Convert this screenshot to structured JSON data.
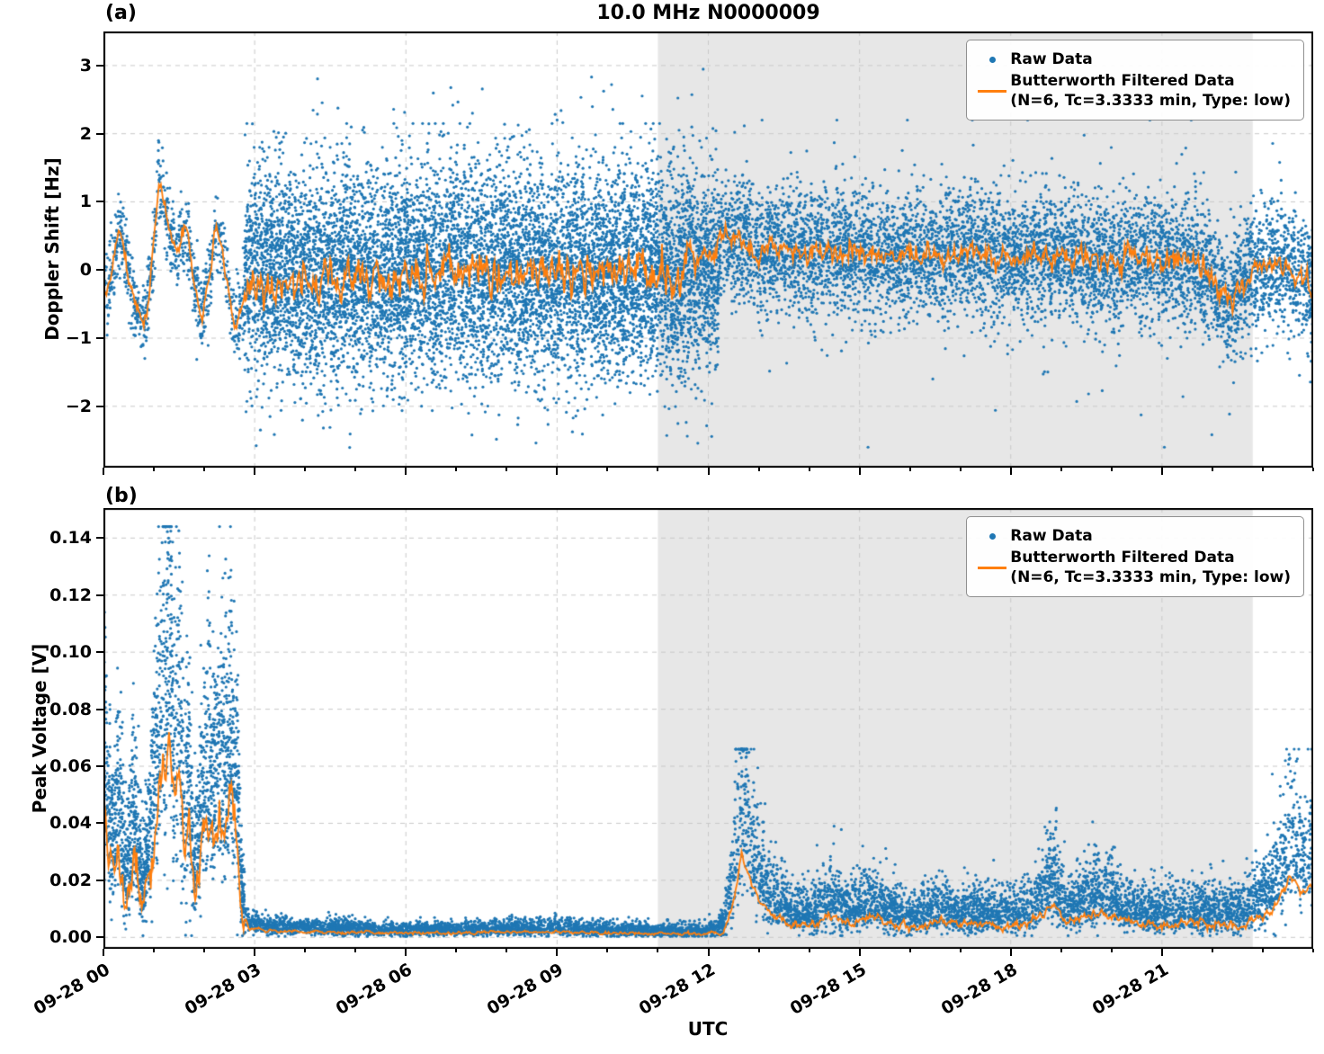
{
  "figure": {
    "colors": {
      "raw": "#1f77b4",
      "filtered": "#ff7f0e",
      "shade": "#e7e7e7",
      "grid": "#c9c9c9",
      "spine": "#000000",
      "background": "#ffffff"
    },
    "legend": {
      "raw_label": "Raw Data",
      "filtered_label_line1": "Butterworth Filtered Data",
      "filtered_label_line2": "(N=6, Tc=3.3333 min, Type: low)"
    }
  },
  "chart_data": [
    {
      "id": "a",
      "type": "scatter",
      "panel_label": "(a)",
      "title": "10.0 MHz N0000009",
      "ylabel": "Doppler Shift [Hz]",
      "xlabel": "",
      "xlim_hours": [
        0,
        24
      ],
      "ylim": [
        -2.9,
        3.5
      ],
      "yticks": {
        "values": [
          3,
          2,
          1,
          0,
          -1,
          -2
        ],
        "labels": [
          "3",
          "2",
          "1",
          "0",
          "−1",
          "−2"
        ]
      },
      "xticks": {
        "hours": [
          0,
          3,
          6,
          9,
          12,
          15,
          18,
          21
        ],
        "labels": [
          "09-28 00",
          "09-28 03",
          "09-28 06",
          "09-28 09",
          "09-28 12",
          "09-28 15",
          "09-28 18",
          "09-28 21"
        ]
      },
      "show_xtick_labels": false,
      "shaded_hours": [
        11.0,
        22.8
      ],
      "grid": true,
      "legend_position": "upper right",
      "series": [
        {
          "name": "Raw Data",
          "type": "scatter",
          "color": "#1f77b4",
          "segments": [
            {
              "t0": 0.0,
              "t1": 2.8,
              "n": 850,
              "center": "line",
              "sd": 0.28,
              "clip": [
                -1.7,
                1.9
              ]
            },
            {
              "t0": 2.8,
              "t1": 12.2,
              "n": 9500,
              "center": -0.05,
              "sd": 0.78,
              "clip": [
                -2.65,
                2.15
              ]
            },
            {
              "t0": 2.8,
              "t1": 12.2,
              "n": 55,
              "center": 2.1,
              "sd": 0.5,
              "clip": [
                1.8,
                3.3
              ]
            },
            {
              "t0": 12.2,
              "t1": 24.0,
              "n": 6500,
              "center": "line",
              "sd": 0.45,
              "clip": [
                -2.3,
                2.0
              ]
            },
            {
              "t0": 12.2,
              "t1": 24.0,
              "n": 260,
              "center": "line",
              "sd": 1.05,
              "clip": [
                -2.6,
                2.2
              ]
            }
          ]
        },
        {
          "name": "Butterworth Filtered Data (N=6, Tc=3.3333 min, Type: low)",
          "type": "line",
          "color": "#ff7f0e",
          "keypoints": [
            [
              0,
              -0.35
            ],
            [
              0.1,
              -0.3
            ],
            [
              0.2,
              0.1
            ],
            [
              0.3,
              0.55
            ],
            [
              0.4,
              0.35
            ],
            [
              0.5,
              -0.1
            ],
            [
              0.65,
              -0.55
            ],
            [
              0.8,
              -0.75
            ],
            [
              0.9,
              -0.35
            ],
            [
              1.0,
              0.4
            ],
            [
              1.1,
              1.35
            ],
            [
              1.2,
              1.05
            ],
            [
              1.3,
              0.6
            ],
            [
              1.45,
              0.25
            ],
            [
              1.6,
              0.6
            ],
            [
              1.7,
              0.35
            ],
            [
              1.85,
              -0.4
            ],
            [
              1.95,
              -0.7
            ],
            [
              2.1,
              -0.15
            ],
            [
              2.2,
              0.5
            ],
            [
              2.3,
              0.5
            ],
            [
              2.45,
              -0.1
            ],
            [
              2.6,
              -0.85
            ],
            [
              2.7,
              -0.6
            ],
            [
              2.85,
              -0.35
            ],
            [
              3.2,
              -0.25
            ],
            [
              4,
              -0.15
            ],
            [
              5,
              -0.05
            ],
            [
              6,
              -0.1
            ],
            [
              7,
              0
            ],
            [
              8,
              -0.05
            ],
            [
              9,
              0
            ],
            [
              10,
              0
            ],
            [
              11,
              -0.05
            ],
            [
              11.5,
              0
            ],
            [
              12.0,
              0.3
            ],
            [
              12.3,
              0.5
            ],
            [
              12.6,
              0.45
            ],
            [
              13,
              0.25
            ],
            [
              13.5,
              0.3
            ],
            [
              14,
              0.25
            ],
            [
              14.5,
              0.3
            ],
            [
              15,
              0.25
            ],
            [
              15.5,
              0.2
            ],
            [
              16,
              0.25
            ],
            [
              16.5,
              0.2
            ],
            [
              17,
              0.3
            ],
            [
              17.5,
              0.2
            ],
            [
              18,
              0.15
            ],
            [
              18.5,
              0.25
            ],
            [
              19,
              0.2
            ],
            [
              19.5,
              0.15
            ],
            [
              20,
              0.1
            ],
            [
              20.5,
              0.2
            ],
            [
              21,
              0.1
            ],
            [
              21.5,
              0.15
            ],
            [
              21.9,
              0
            ],
            [
              22.3,
              -0.5
            ],
            [
              22.6,
              -0.15
            ],
            [
              22.9,
              0.05
            ],
            [
              23.3,
              0.1
            ],
            [
              23.6,
              -0.05
            ],
            [
              24,
              -0.3
            ]
          ],
          "jitter_segments": [
            [
              0,
              2.8,
              0.08
            ],
            [
              2.8,
              12.2,
              0.22
            ],
            [
              12.2,
              24,
              0.12
            ]
          ]
        }
      ]
    },
    {
      "id": "b",
      "type": "scatter",
      "panel_label": "(b)",
      "title": "",
      "ylabel": "Peak Voltage [V]",
      "xlabel": "UTC",
      "xlim_hours": [
        0,
        24
      ],
      "ylim": [
        -0.004,
        0.1505
      ],
      "yticks": {
        "values": [
          0.14,
          0.12,
          0.1,
          0.08,
          0.06,
          0.04,
          0.02,
          0.0
        ],
        "labels": [
          "0.14",
          "0.12",
          "0.10",
          "0.08",
          "0.06",
          "0.04",
          "0.02",
          "0.00"
        ]
      },
      "xticks": {
        "hours": [
          0,
          3,
          6,
          9,
          12,
          15,
          18,
          21
        ],
        "labels": [
          "09-28 00",
          "09-28 03",
          "09-28 06",
          "09-28 09",
          "09-28 12",
          "09-28 15",
          "09-28 18",
          "09-28 21"
        ]
      },
      "show_xtick_labels": true,
      "shaded_hours": [
        11.0,
        22.8
      ],
      "grid": true,
      "legend_position": "upper right",
      "line_min": 0.0008,
      "series": [
        {
          "name": "Raw Data",
          "type": "scatter",
          "color": "#1f77b4",
          "segments": [
            {
              "t0": 0.0,
              "t1": 2.8,
              "n": 2200,
              "center": "line",
              "mode": "positive",
              "amp_line": 0.65,
              "amp_base": 0.004,
              "clip": [
                0.0006,
                0.144
              ]
            },
            {
              "t0": 2.8,
              "t1": 12.2,
              "n": 3200,
              "center": "line",
              "mode": "positive",
              "amp_line": 0.6,
              "amp_base": 0.0008,
              "clip": [
                0.0004,
                0.01
              ]
            },
            {
              "t0": 12.2,
              "t1": 24.0,
              "n": 5200,
              "center": "line",
              "mode": "positive",
              "amp_line": 1.0,
              "amp_base": 0.0018,
              "clip": [
                0.0006,
                0.066
              ]
            }
          ]
        },
        {
          "name": "Butterworth Filtered Data (N=6, Tc=3.3333 min, Type: low)",
          "type": "line",
          "color": "#ff7f0e",
          "keypoints": [
            [
              0,
              0.046
            ],
            [
              0.1,
              0.03
            ],
            [
              0.2,
              0.02
            ],
            [
              0.3,
              0.036
            ],
            [
              0.45,
              0.012
            ],
            [
              0.6,
              0.028
            ],
            [
              0.75,
              0.012
            ],
            [
              0.9,
              0.02
            ],
            [
              1.0,
              0.035
            ],
            [
              1.15,
              0.055
            ],
            [
              1.3,
              0.07
            ],
            [
              1.4,
              0.045
            ],
            [
              1.5,
              0.055
            ],
            [
              1.6,
              0.03
            ],
            [
              1.7,
              0.04
            ],
            [
              1.8,
              0.015
            ],
            [
              1.95,
              0.03
            ],
            [
              2.1,
              0.045
            ],
            [
              2.2,
              0.035
            ],
            [
              2.3,
              0.042
            ],
            [
              2.45,
              0.04
            ],
            [
              2.55,
              0.05
            ],
            [
              2.65,
              0.035
            ],
            [
              2.75,
              0.008
            ],
            [
              2.9,
              0.003
            ],
            [
              3.2,
              0.0025
            ],
            [
              4,
              0.002
            ],
            [
              5,
              0.0018
            ],
            [
              6,
              0.0015
            ],
            [
              7,
              0.0015
            ],
            [
              8,
              0.0018
            ],
            [
              9,
              0.002
            ],
            [
              10,
              0.0015
            ],
            [
              11,
              0.0012
            ],
            [
              11.8,
              0.0012
            ],
            [
              12.3,
              0.002
            ],
            [
              12.5,
              0.012
            ],
            [
              12.65,
              0.03
            ],
            [
              12.8,
              0.022
            ],
            [
              12.95,
              0.015
            ],
            [
              13.2,
              0.008
            ],
            [
              13.6,
              0.005
            ],
            [
              14,
              0.004
            ],
            [
              14.4,
              0.007
            ],
            [
              14.8,
              0.005
            ],
            [
              15.2,
              0.007
            ],
            [
              15.6,
              0.005
            ],
            [
              16,
              0.004
            ],
            [
              16.5,
              0.005
            ],
            [
              17,
              0.004
            ],
            [
              17.5,
              0.0045
            ],
            [
              18,
              0.004
            ],
            [
              18.4,
              0.005
            ],
            [
              18.85,
              0.012
            ],
            [
              19.1,
              0.005
            ],
            [
              19.4,
              0.007
            ],
            [
              19.7,
              0.009
            ],
            [
              20,
              0.007
            ],
            [
              20.4,
              0.005
            ],
            [
              21,
              0.0045
            ],
            [
              21.5,
              0.005
            ],
            [
              22,
              0.0045
            ],
            [
              22.5,
              0.005
            ],
            [
              23,
              0.007
            ],
            [
              23.3,
              0.012
            ],
            [
              23.55,
              0.022
            ],
            [
              23.75,
              0.015
            ],
            [
              24,
              0.018
            ]
          ],
          "jitter_segments": [
            [
              0,
              2.8,
              0.006
            ],
            [
              2.8,
              12.2,
              0.0004
            ],
            [
              12.2,
              24,
              0.0012
            ]
          ]
        }
      ]
    }
  ]
}
